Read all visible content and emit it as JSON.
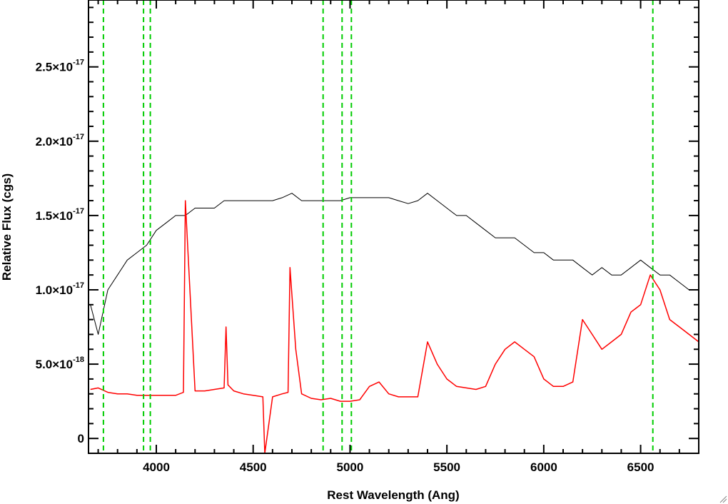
{
  "chart_data": {
    "type": "line",
    "xlabel": "Rest Wavelength (Ang)",
    "ylabel": "Relative Flux (cgs)",
    "xlim": [
      3650,
      6800
    ],
    "ylim": [
      -1e-18,
      2.95e-17
    ],
    "x_ticks": [
      {
        "value": 4000,
        "label": "4000"
      },
      {
        "value": 4500,
        "label": "4500"
      },
      {
        "value": 5000,
        "label": "5000"
      },
      {
        "value": 5500,
        "label": "5500"
      },
      {
        "value": 6000,
        "label": "6000"
      },
      {
        "value": 6500,
        "label": "6500"
      }
    ],
    "y_ticks": [
      {
        "value": 0,
        "mantissa": "0",
        "exponent": ""
      },
      {
        "value": 5e-18,
        "mantissa": "5.0×10",
        "exponent": "-18"
      },
      {
        "value": 1e-17,
        "mantissa": "1.0×10",
        "exponent": "-17"
      },
      {
        "value": 1.5e-17,
        "mantissa": "1.5×10",
        "exponent": "-17"
      },
      {
        "value": 2e-17,
        "mantissa": "2.0×10",
        "exponent": "-17"
      },
      {
        "value": 2.5e-17,
        "mantissa": "2.5×10",
        "exponent": "-17"
      }
    ],
    "grid": false,
    "legend": "none",
    "colors": {
      "observed": "#000000",
      "model": "#ff0000",
      "lines": "#00cc00"
    },
    "vertical_lines": [
      3727,
      3934,
      3969,
      4861,
      4959,
      5007,
      6563
    ],
    "series": [
      {
        "color": "#000000",
        "x": [
          3660,
          3700,
          3750,
          3800,
          3850,
          3900,
          3950,
          4000,
          4050,
          4100,
          4150,
          4200,
          4250,
          4300,
          4350,
          4400,
          4450,
          4500,
          4550,
          4600,
          4650,
          4700,
          4750,
          4800,
          4850,
          4900,
          4950,
          5000,
          5050,
          5100,
          5150,
          5200,
          5250,
          5300,
          5350,
          5400,
          5450,
          5500,
          5550,
          5600,
          5650,
          5700,
          5750,
          5800,
          5850,
          5900,
          5950,
          6000,
          6050,
          6100,
          6150,
          6200,
          6250,
          6300,
          6350,
          6400,
          6450,
          6500,
          6550,
          6600,
          6650,
          6700,
          6750,
          6800
        ],
        "y": [
          9e-18,
          7e-18,
          1e-17,
          1.1e-17,
          1.2e-17,
          1.25e-17,
          1.3e-17,
          1.4e-17,
          1.45e-17,
          1.5e-17,
          1.5e-17,
          1.55e-17,
          1.55e-17,
          1.55e-17,
          1.6e-17,
          1.6e-17,
          1.6e-17,
          1.6e-17,
          1.6e-17,
          1.6e-17,
          1.62e-17,
          1.65e-17,
          1.6e-17,
          1.6e-17,
          1.6e-17,
          1.6e-17,
          1.6e-17,
          1.62e-17,
          1.62e-17,
          1.62e-17,
          1.62e-17,
          1.62e-17,
          1.6e-17,
          1.58e-17,
          1.6e-17,
          1.65e-17,
          1.6e-17,
          1.55e-17,
          1.5e-17,
          1.5e-17,
          1.45e-17,
          1.4e-17,
          1.35e-17,
          1.35e-17,
          1.35e-17,
          1.3e-17,
          1.25e-17,
          1.25e-17,
          1.2e-17,
          1.2e-17,
          1.2e-17,
          1.15e-17,
          1.1e-17,
          1.15e-17,
          1.1e-17,
          1.1e-17,
          1.15e-17,
          1.2e-17,
          1.15e-17,
          1.1e-17,
          1.1e-17,
          1.05e-17,
          1e-17,
          1e-17
        ]
      },
      {
        "color": "#ff0000",
        "x": [
          3660,
          3700,
          3750,
          3800,
          3850,
          3900,
          3950,
          4000,
          4050,
          4100,
          4140,
          4150,
          4200,
          4250,
          4300,
          4350,
          4360,
          4370,
          4400,
          4450,
          4500,
          4550,
          4560,
          4600,
          4650,
          4680,
          4690,
          4720,
          4750,
          4800,
          4850,
          4900,
          4950,
          5000,
          5050,
          5100,
          5150,
          5200,
          5250,
          5300,
          5350,
          5400,
          5450,
          5500,
          5550,
          5600,
          5650,
          5700,
          5750,
          5800,
          5850,
          5900,
          5950,
          6000,
          6050,
          6100,
          6150,
          6200,
          6250,
          6300,
          6350,
          6400,
          6450,
          6500,
          6550,
          6600,
          6650,
          6700,
          6750,
          6800
        ],
        "y": [
          3.3e-18,
          3.4e-18,
          3.1e-18,
          3e-18,
          3e-18,
          2.9e-18,
          2.9e-18,
          2.9e-18,
          2.9e-18,
          2.9e-18,
          3.1e-18,
          1.6e-17,
          3.2e-18,
          3.2e-18,
          3.3e-18,
          3.4e-18,
          7.5e-18,
          3.6e-18,
          3.2e-18,
          3e-18,
          2.9e-18,
          2.8e-18,
          -1e-18,
          2.8e-18,
          3e-18,
          3.1e-18,
          1.15e-17,
          6e-18,
          3e-18,
          2.7e-18,
          2.6e-18,
          2.7e-18,
          2.5e-18,
          2.5e-18,
          2.6e-18,
          3.5e-18,
          3.8e-18,
          3e-18,
          2.8e-18,
          2.8e-18,
          2.8e-18,
          6.5e-18,
          5e-18,
          4e-18,
          3.5e-18,
          3.4e-18,
          3.3e-18,
          3.5e-18,
          5e-18,
          6e-18,
          6.5e-18,
          6e-18,
          5.5e-18,
          4e-18,
          3.5e-18,
          3.5e-18,
          3.8e-18,
          8e-18,
          7e-18,
          6e-18,
          6.5e-18,
          7e-18,
          8.5e-18,
          9e-18,
          1.1e-17,
          1e-17,
          8e-18,
          7.5e-18,
          7e-18,
          6.5e-18
        ]
      }
    ]
  }
}
